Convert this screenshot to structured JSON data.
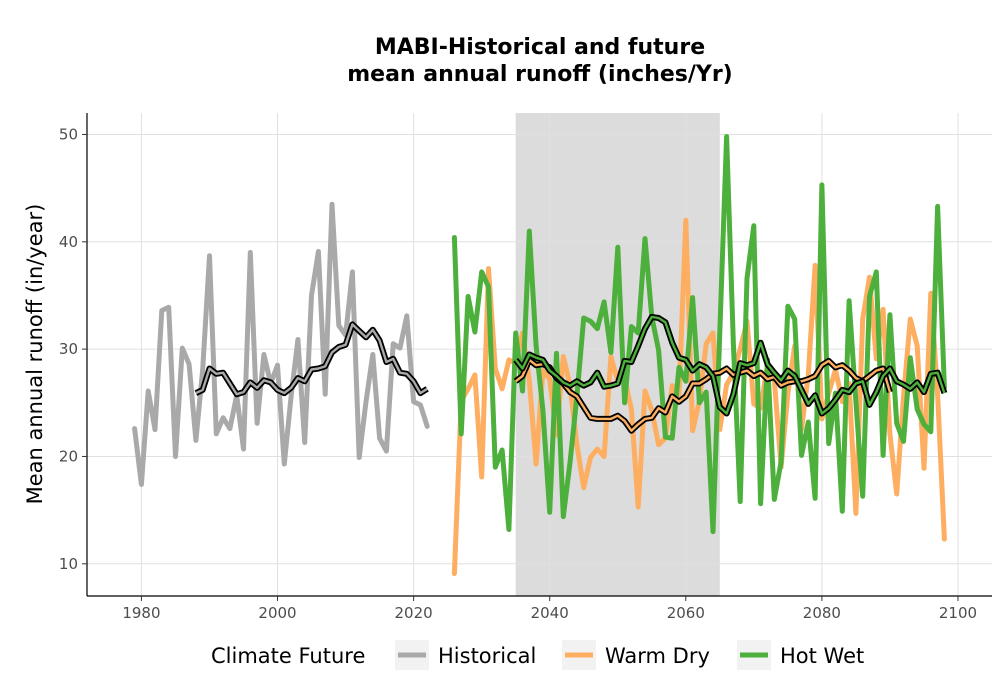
{
  "chart_data": {
    "type": "line",
    "title_line1": "MABI-Historical and future",
    "title_line2": "mean annual runoff (inches/Yr)",
    "ylabel": "Mean annual runoff (in/year)",
    "xlabel": "",
    "xlim": [
      1972,
      2105
    ],
    "ylim": [
      7,
      52
    ],
    "x_ticks": [
      1980,
      2000,
      2020,
      2040,
      2060,
      2080,
      2100
    ],
    "y_ticks": [
      10,
      20,
      30,
      40,
      50
    ],
    "grid": true,
    "shaded_period": [
      2035,
      2065
    ],
    "legend": {
      "title": "Climate Future",
      "position": "bottom",
      "entries": [
        "Historical",
        "Warm Dry",
        "Hot Wet"
      ]
    },
    "colors": {
      "Historical": "#a9a9a9",
      "Warm Dry": "#fdae61",
      "Hot Wet": "#4daf3c",
      "moving_average": "#000000",
      "shade": "#dcdcdc",
      "grid": "#e0e0e0"
    },
    "series": [
      {
        "name": "Historical",
        "x_start": 1979,
        "values": [
          22.6,
          17.4,
          26.1,
          22.5,
          33.6,
          33.9,
          20.0,
          30.1,
          28.6,
          21.5,
          28.1,
          38.7,
          22.1,
          23.6,
          22.6,
          25.7,
          20.7,
          39.0,
          23.1,
          29.5,
          26.8,
          28.5,
          19.3,
          25.6,
          30.9,
          21.3,
          35.0,
          39.1,
          25.8,
          43.5,
          32.2,
          31.3,
          37.2,
          19.9,
          25.1,
          29.5,
          21.7,
          20.5,
          30.5,
          30.1,
          33.1,
          25.1,
          24.8,
          22.8
        ]
      },
      {
        "name": "Warm Dry",
        "x_start": 2026,
        "values": [
          9.1,
          25.2,
          26.3,
          27.6,
          18.1,
          37.5,
          28.2,
          26.3,
          29.0,
          28.7,
          31.5,
          27.1,
          19.3,
          28.0,
          27.2,
          22.0,
          29.3,
          26.6,
          21.1,
          17.1,
          19.9,
          20.7,
          20.0,
          29.3,
          27.0,
          27.3,
          24.4,
          15.3,
          26.1,
          24.3,
          21.1,
          21.7,
          26.6,
          25.7,
          42.0,
          22.4,
          25.2,
          30.5,
          31.5,
          22.5,
          26.7,
          27.8,
          30.0,
          32.6,
          24.9,
          24.5,
          28.5,
          27.2,
          19.0,
          25.9,
          30.3,
          22.5,
          27.6,
          37.8,
          23.5,
          25.9,
          28.1,
          25.1,
          26.8,
          14.7,
          32.8,
          36.7,
          29.1,
          33.7,
          22.1,
          16.5,
          25.6,
          32.8,
          30.3,
          18.9,
          35.2,
          25.8,
          12.3
        ]
      },
      {
        "name": "Hot Wet",
        "x_start": 2026,
        "values": [
          40.4,
          22.1,
          34.9,
          31.6,
          37.2,
          35.8,
          19.0,
          20.6,
          13.2,
          31.5,
          26.1,
          41.0,
          30.3,
          24.3,
          14.8,
          29.6,
          14.4,
          19.5,
          25.6,
          32.9,
          32.6,
          31.9,
          34.4,
          29.7,
          39.5,
          25.0,
          32.1,
          31.5,
          40.3,
          33.0,
          29.9,
          21.8,
          21.7,
          28.3,
          27.0,
          34.8,
          25.0,
          26.0,
          13.0,
          31.6,
          49.8,
          30.4,
          15.8,
          36.6,
          41.5,
          15.6,
          29.0,
          16.0,
          19.5,
          34.0,
          32.8,
          20.1,
          23.2,
          16.1,
          45.3,
          21.2,
          25.9,
          14.9,
          34.5,
          25.1,
          16.3,
          34.9,
          37.2,
          20.1,
          33.2,
          23.1,
          21.4,
          29.2,
          24.4,
          23.0,
          22.3,
          43.3,
          26.4
        ]
      }
    ],
    "moving_averages": [
      {
        "series": "Historical",
        "x_start": 1988,
        "values": [
          25.9,
          26.2,
          28.2,
          27.7,
          27.8,
          26.8,
          25.8,
          26.0,
          26.9,
          26.4,
          27.1,
          26.9,
          26.2,
          25.9,
          26.4,
          27.3,
          27.0,
          28.1,
          28.2,
          28.4,
          29.7,
          30.2,
          30.4,
          32.3,
          31.7,
          31.1,
          31.8,
          30.8,
          28.8,
          29.1,
          27.8,
          27.7,
          27.0,
          25.9,
          26.3
        ]
      },
      {
        "series": "Warm Dry",
        "x_start": 2035,
        "values": [
          27.0,
          27.5,
          29.0,
          28.5,
          28.6,
          28.3,
          27.3,
          26.8,
          26.0,
          25.6,
          24.6,
          23.6,
          23.5,
          23.5,
          23.5,
          23.8,
          23.3,
          22.4,
          23.0,
          23.5,
          23.6,
          24.5,
          24.1,
          25.6,
          25.1,
          25.6,
          26.8,
          26.8,
          27.2,
          27.7,
          27.8,
          28.2,
          27.6,
          27.8,
          28.0,
          27.5,
          27.8,
          27.2,
          27.4,
          26.6,
          26.9,
          27.0,
          27.0,
          27.2,
          27.5,
          28.5,
          28.9,
          28.3,
          28.5,
          28.0,
          27.3,
          27.0,
          27.5,
          28.0,
          28.2,
          26.0
        ]
      },
      {
        "series": "Hot Wet",
        "x_start": 2035,
        "values": [
          29.0,
          28.2,
          29.5,
          29.2,
          29.0,
          28.0,
          27.5,
          26.9,
          26.6,
          27.0,
          26.6,
          26.9,
          27.8,
          26.5,
          26.6,
          26.8,
          28.9,
          28.8,
          30.3,
          31.9,
          33.0,
          32.9,
          32.5,
          30.6,
          29.2,
          29.0,
          28.0,
          28.6,
          28.3,
          27.5,
          24.6,
          24.0,
          25.8,
          28.7,
          28.5,
          28.7,
          30.6,
          28.6,
          27.8,
          27.1,
          28.0,
          27.5,
          26.2,
          24.9,
          25.7,
          24.0,
          24.5,
          25.3,
          26.2,
          26.0,
          26.8,
          27.0,
          24.8,
          26.0,
          27.5,
          28.2,
          27.0,
          26.7,
          26.3,
          26.9,
          26.0,
          27.7,
          27.8,
          25.9
        ]
      }
    ]
  }
}
